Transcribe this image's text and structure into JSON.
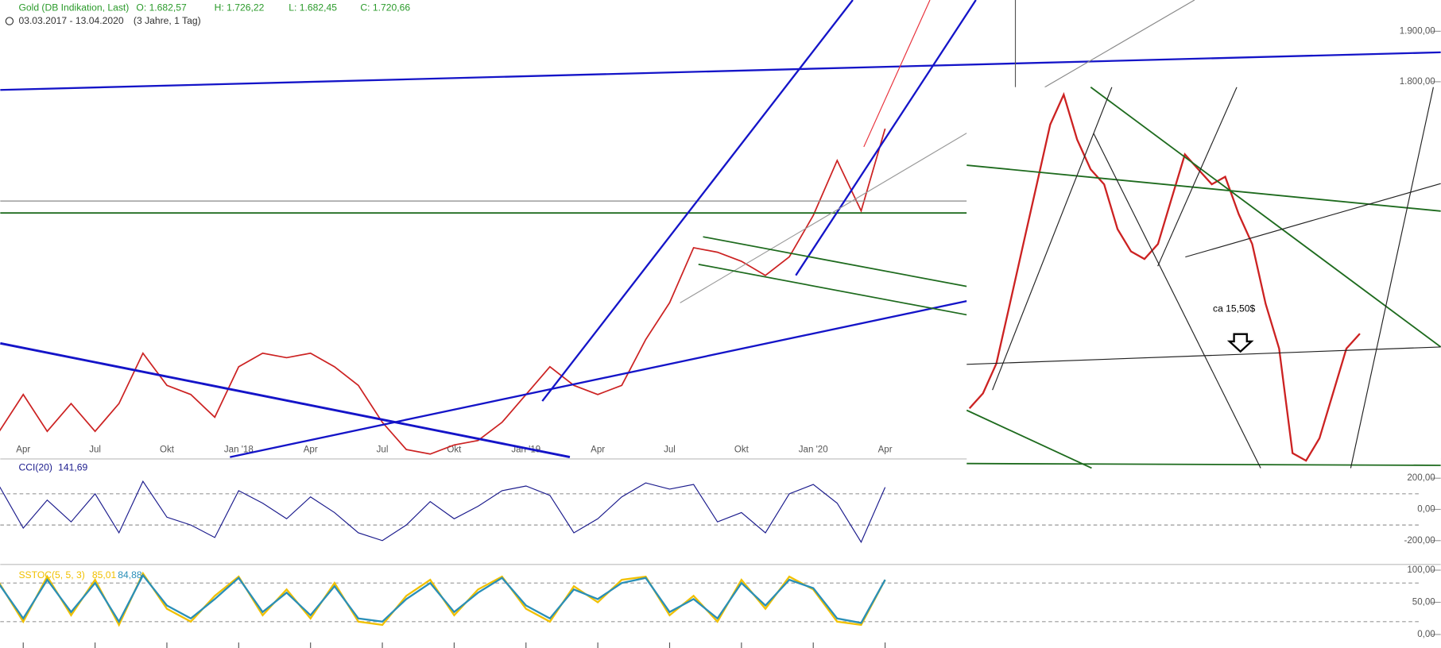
{
  "chart_data": [
    {
      "type": "line",
      "title": "Gold (DB Indikation, Last)",
      "ohlc": [
        "O: 1.682,57",
        "H: 1.726,22",
        "L: 1.682,45",
        "C: 1.720,66"
      ],
      "period": "03.03.2017 - 13.04.2020",
      "span": "(3 Jahre, 1 Tag)",
      "categories": [
        null,
        "Apr",
        null,
        null,
        "Jul",
        null,
        null,
        "Okt",
        null,
        null,
        "Jan '18",
        null,
        null,
        "Apr",
        null,
        null,
        "Jul",
        null,
        null,
        "Okt",
        null,
        null,
        "Jan '19",
        null,
        null,
        "Apr",
        null,
        null,
        "Jul",
        null,
        null,
        "Okt",
        null,
        null,
        "Jan '20",
        null,
        null,
        "Apr"
      ],
      "values": [
        1107,
        1180,
        1107,
        1162,
        1107,
        1162,
        1262,
        1198,
        1180,
        1135,
        1235,
        1262,
        1253,
        1262,
        1235,
        1198,
        1125,
        1071,
        1062,
        1080,
        1089,
        1125,
        1180,
        1235,
        1198,
        1180,
        1198,
        1289,
        1362,
        1471,
        1462,
        1444,
        1416,
        1453,
        1535,
        1644,
        1544,
        1707
      ],
      "color": "#cc2222",
      "ylim": [
        1056,
        1962
      ],
      "yticks": [
        {
          "value": 1800,
          "label": "1.800,00"
        },
        {
          "value": 1900,
          "label": "1.900,00"
        }
      ]
    },
    {
      "type": "line",
      "title": "CCI(20)",
      "readout": "141,69",
      "color": "#1a1a8c",
      "values": [
        150,
        -120,
        60,
        -80,
        100,
        -150,
        180,
        -50,
        -100,
        -180,
        120,
        40,
        -60,
        80,
        -20,
        -150,
        -200,
        -100,
        50,
        -60,
        20,
        120,
        150,
        90,
        -150,
        -60,
        80,
        170,
        130,
        160,
        -80,
        -20,
        -150,
        100,
        160,
        40,
        -210,
        142
      ],
      "ylim": [
        -353,
        306
      ],
      "yticks": [
        {
          "value": 200,
          "label": "200,00"
        },
        {
          "value": 0,
          "label": "0,00"
        },
        {
          "value": -200,
          "label": "-200,00"
        }
      ],
      "ref_lines": [
        100,
        -100
      ]
    },
    {
      "type": "line",
      "series": [
        {
          "name": "SSTOC(5, 5, 3)",
          "readout": "85,01",
          "color": "#f0c000",
          "values": [
            80,
            20,
            90,
            30,
            85,
            15,
            95,
            40,
            20,
            60,
            90,
            30,
            70,
            25,
            80,
            20,
            15,
            60,
            85,
            30,
            70,
            90,
            40,
            20,
            75,
            50,
            85,
            90,
            30,
            60,
            20,
            85,
            40,
            90,
            70,
            20,
            15,
            85
          ]
        },
        {
          "readout": "84,88",
          "color": "#2a8fb8",
          "values": [
            78,
            25,
            85,
            35,
            80,
            20,
            92,
            45,
            25,
            55,
            88,
            35,
            65,
            30,
            75,
            25,
            20,
            55,
            80,
            35,
            65,
            88,
            45,
            25,
            70,
            55,
            80,
            88,
            35,
            55,
            25,
            80,
            45,
            85,
            72,
            25,
            18,
            85
          ]
        }
      ],
      "ylim": [
        -21,
        106
      ],
      "yticks": [
        {
          "value": 100,
          "label": "100,00"
        },
        {
          "value": 50,
          "label": "50,00"
        },
        {
          "value": 0,
          "label": "0,00"
        }
      ],
      "ref_lines": [
        80,
        20
      ]
    },
    {
      "type": "line",
      "annotation": "ca 15,50$",
      "color": "#cc2222",
      "values": [
        1490,
        1500,
        1520,
        1560,
        1600,
        1640,
        1680,
        1700,
        1670,
        1650,
        1640,
        1610,
        1595,
        1590,
        1600,
        1630,
        1660,
        1650,
        1640,
        1645,
        1620,
        1600,
        1560,
        1530,
        1460,
        1455,
        1470,
        1500,
        1530,
        1540
      ],
      "ylim": [
        1450,
        1705
      ]
    }
  ]
}
